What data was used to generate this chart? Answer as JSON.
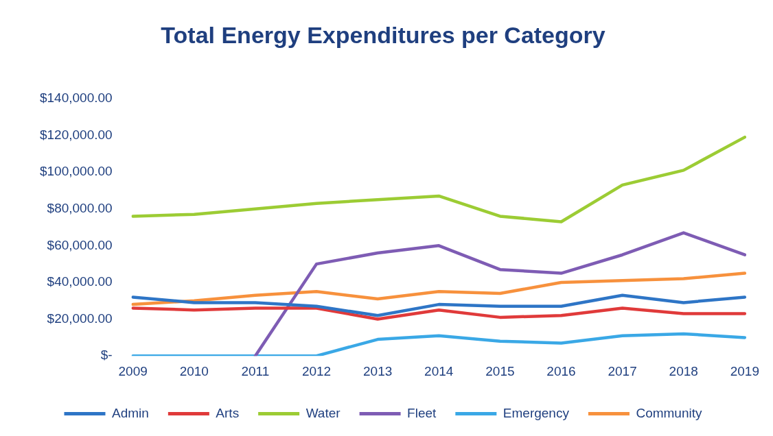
{
  "chart_data": {
    "type": "line",
    "title": "Total Energy Expenditures per Category",
    "categories": [
      "2009",
      "2010",
      "2011",
      "2012",
      "2013",
      "2014",
      "2015",
      "2016",
      "2017",
      "2018",
      "2019"
    ],
    "series": [
      {
        "name": "Admin",
        "color": "#2e75c6",
        "values": [
          32000,
          29000,
          29000,
          27000,
          22000,
          28000,
          27000,
          27000,
          33000,
          29000,
          32000
        ]
      },
      {
        "name": "Arts",
        "color": "#e03a3a",
        "values": [
          26000,
          25000,
          26000,
          26000,
          20000,
          25000,
          21000,
          22000,
          26000,
          23000,
          23000
        ]
      },
      {
        "name": "Water",
        "color": "#9ccc34",
        "values": [
          76000,
          77000,
          80000,
          83000,
          85000,
          87000,
          76000,
          73000,
          93000,
          101000,
          119000
        ]
      },
      {
        "name": "Fleet",
        "color": "#7e5cb4",
        "values": [
          null,
          null,
          0,
          50000,
          56000,
          60000,
          47000,
          45000,
          55000,
          67000,
          55000
        ]
      },
      {
        "name": "Emergency",
        "color": "#3aa8e6",
        "values": [
          0,
          0,
          0,
          0,
          9000,
          11000,
          8000,
          7000,
          11000,
          12000,
          10000
        ]
      },
      {
        "name": "Community",
        "color": "#f7913d",
        "values": [
          28000,
          30000,
          33000,
          35000,
          31000,
          35000,
          34000,
          40000,
          41000,
          42000,
          45000
        ]
      }
    ],
    "ylim": [
      0,
      140000
    ],
    "yticks": [
      {
        "value": 0,
        "label": "$-"
      },
      {
        "value": 20000,
        "label": "$20,000.00"
      },
      {
        "value": 40000,
        "label": "$40,000.00"
      },
      {
        "value": 60000,
        "label": "$60,000.00"
      },
      {
        "value": 80000,
        "label": "$80,000.00"
      },
      {
        "value": 100000,
        "label": "$100,000.00"
      },
      {
        "value": 120000,
        "label": "$120,000.00"
      },
      {
        "value": 140000,
        "label": "$140,000.00"
      }
    ],
    "grid": false,
    "legend": "bottom",
    "marker": "none",
    "line_style": "solid"
  }
}
